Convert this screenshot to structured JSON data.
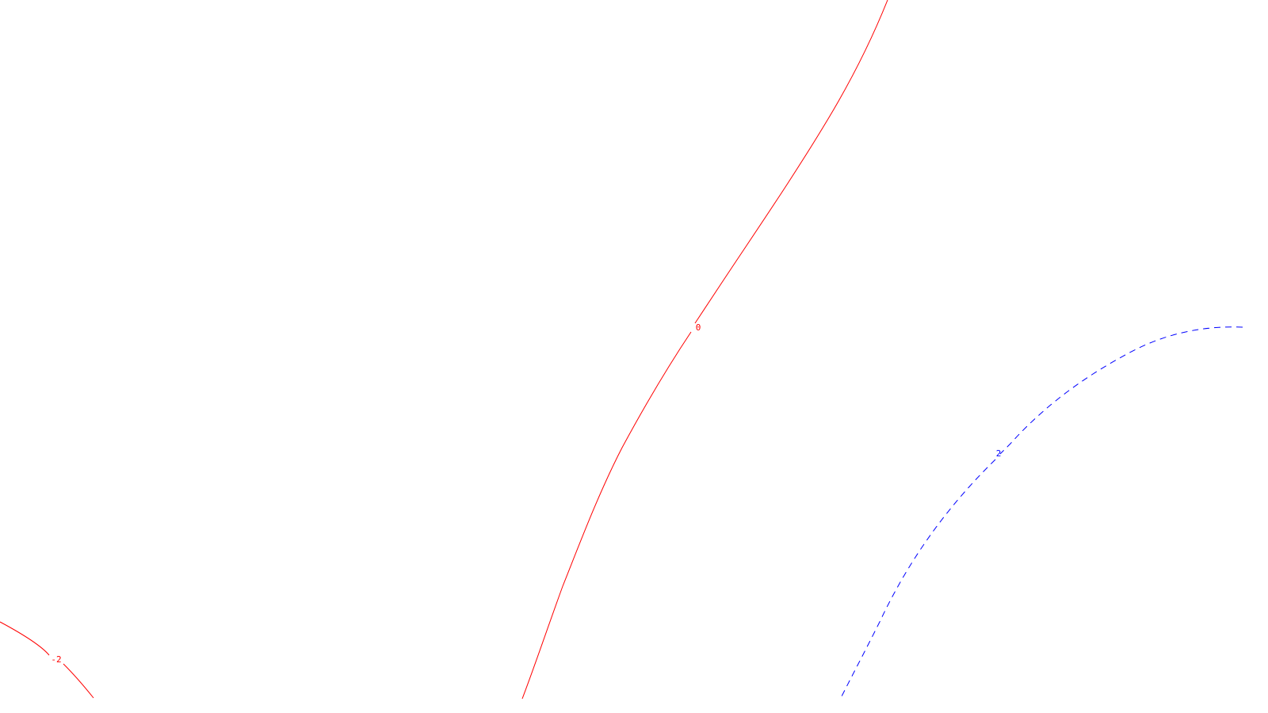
{
  "chart_data": {
    "type": "contour",
    "title": "",
    "xlabel": "",
    "ylabel": "",
    "grid": false,
    "legend": "none",
    "contours": [
      {
        "level": -2,
        "label": "-2",
        "color": "#ff0000",
        "style": "solid"
      },
      {
        "level": 0,
        "label": "0",
        "color": "#ff0000",
        "style": "solid"
      },
      {
        "level": 2,
        "label": "2",
        "color": "#0000ff",
        "style": "dashed"
      }
    ]
  }
}
